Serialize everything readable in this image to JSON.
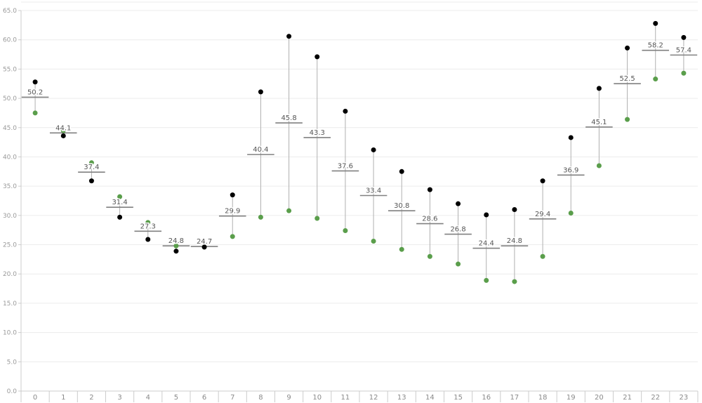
{
  "chart_data": {
    "type": "scatter",
    "title": "",
    "xlabel": "",
    "ylabel": "",
    "ylim": [
      0,
      65
    ],
    "y_ticks": [
      "0.0",
      "5.0",
      "10.0",
      "15.0",
      "20.0",
      "25.0",
      "30.0",
      "35.0",
      "40.0",
      "45.0",
      "50.0",
      "55.0",
      "60.0",
      "65.0"
    ],
    "grid": true,
    "categories": [
      "0",
      "1",
      "2",
      "3",
      "4",
      "5",
      "6",
      "7",
      "8",
      "9",
      "10",
      "11",
      "12",
      "13",
      "14",
      "15",
      "16",
      "17",
      "18",
      "19",
      "20",
      "21",
      "22",
      "23"
    ],
    "series": [
      {
        "role": "black-points",
        "color": "#000000",
        "values": [
          52.8,
          43.6,
          35.9,
          29.7,
          25.9,
          23.9,
          24.6,
          33.5,
          51.1,
          60.6,
          57.1,
          47.8,
          41.2,
          37.5,
          34.4,
          32.0,
          30.1,
          31.0,
          35.9,
          43.3,
          51.7,
          58.6,
          62.8,
          60.4
        ]
      },
      {
        "role": "green-points",
        "color": "#5a9e4b",
        "values": [
          47.5,
          44.5,
          39.0,
          33.2,
          28.8,
          24.8,
          24.6,
          26.4,
          29.7,
          30.8,
          29.5,
          27.4,
          25.6,
          24.2,
          23.0,
          21.7,
          18.9,
          18.7,
          23.0,
          30.4,
          38.5,
          46.4,
          53.3,
          54.3
        ]
      },
      {
        "role": "average",
        "color": "#808080",
        "values": [
          50.2,
          44.1,
          37.4,
          31.4,
          27.3,
          24.8,
          24.7,
          29.9,
          40.4,
          45.8,
          43.3,
          37.6,
          33.4,
          30.8,
          28.6,
          26.8,
          24.4,
          24.8,
          29.4,
          36.9,
          45.1,
          52.5,
          58.2,
          57.4
        ],
        "labels": [
          "50.2",
          "44.1",
          "37.4",
          "31.4",
          "27.3",
          "24.8",
          "24.7",
          "29.9",
          "40.4",
          "45.8",
          "43.3",
          "37.6",
          "33.4",
          "30.8",
          "28.6",
          "26.8",
          "24.4",
          "24.8",
          "29.4",
          "36.9",
          "45.1",
          "52.5",
          "58.2",
          "57.4"
        ]
      }
    ],
    "colors": {
      "grid": "#ececec",
      "axis": "#cccccc",
      "range_line": "#b0b0b0",
      "avg_line": "#808080"
    }
  }
}
